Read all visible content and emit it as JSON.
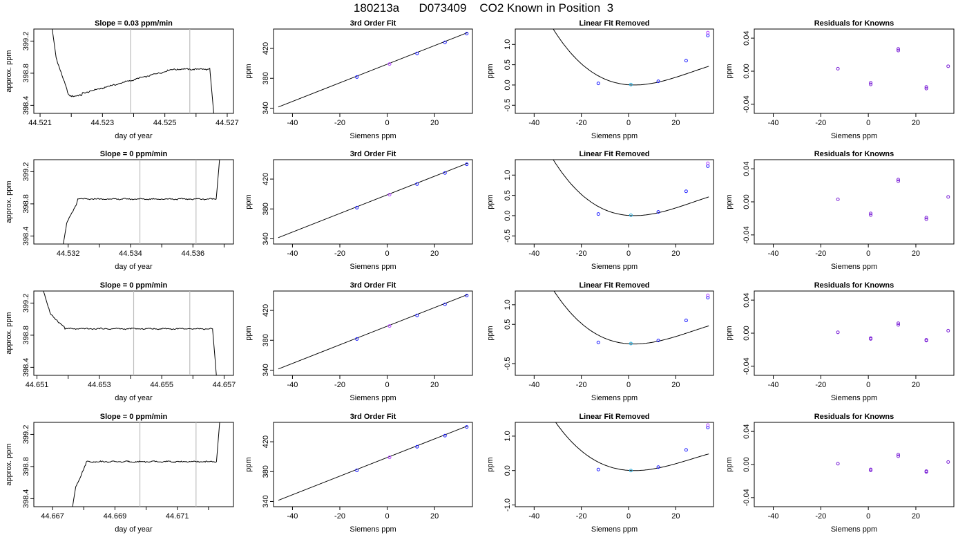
{
  "page_title": "180213a      D073409    CO2 Known in Position  3",
  "colors": {
    "axis": "#000000",
    "line": "#000000",
    "vline": "#bdbdbd",
    "pt_blue": "#1a1aff",
    "pt_purple": "#b040ff",
    "pt_cyan": "#22a8d8",
    "pt_violet": "#7a1fd6"
  },
  "chart_data": [
    {
      "panel": "r1c1",
      "type": "line",
      "title": "Slope =  0.03  ppm/min",
      "xlabel": "day of year",
      "ylabel": "approx. ppm",
      "xlim": [
        44.5208,
        44.5272
      ],
      "ylim": [
        398.3,
        399.35
      ],
      "xticks": [
        44.521,
        44.523,
        44.525,
        44.527
      ],
      "xtick_labels": [
        "44.521",
        "44.523",
        "44.525",
        "44.527"
      ],
      "xminor": [
        44.522,
        44.524,
        44.526
      ],
      "yticks": [
        398.4,
        398.8,
        399.2
      ],
      "ytick_labels": [
        "398.4",
        "398.8",
        "399.2"
      ],
      "vlines": [
        44.5239,
        44.5258
      ],
      "profile": "r1",
      "x0": 44.5213,
      "x1": 44.5266
    },
    {
      "panel": "r1c2",
      "type": "line",
      "title": "3rd Order Fit",
      "xlabel": "Siemens ppm",
      "ylabel": "ppm",
      "xlim": [
        -48,
        36
      ],
      "ylim": [
        333,
        446
      ],
      "xticks": [
        -40,
        -20,
        0,
        20
      ],
      "xtick_labels": [
        "-40",
        "-20",
        "0",
        "20"
      ],
      "yticks": [
        340,
        380,
        420
      ],
      "ytick_labels": [
        "340",
        "380",
        "420"
      ],
      "line": {
        "x": [
          -46,
          34
        ],
        "y": [
          341.5,
          441.3
        ]
      },
      "points": [
        {
          "x": -12.8,
          "y": 381.7,
          "c": "pt_blue"
        },
        {
          "x": 1,
          "y": 399.1,
          "c": "pt_purple"
        },
        {
          "x": 12.6,
          "y": 413.3,
          "c": "pt_blue"
        },
        {
          "x": 24.4,
          "y": 428.2,
          "c": "pt_blue"
        },
        {
          "x": 33.6,
          "y": 439.9,
          "c": "pt_blue"
        }
      ]
    },
    {
      "panel": "r1c3",
      "type": "scatter",
      "title": "Linear Fit Removed",
      "xlabel": "Siemens ppm",
      "ylabel": "ppm",
      "xlim": [
        -48,
        36
      ],
      "ylim": [
        -0.7,
        1.38
      ],
      "xticks": [
        -40,
        -20,
        0,
        20
      ],
      "xtick_labels": [
        "-40",
        "-20",
        "0",
        "20"
      ],
      "yticks": [
        -0.5,
        0,
        0.5,
        1
      ],
      "ytick_labels": [
        "-0.5",
        "0.0",
        "0.5",
        "1.0"
      ],
      "curve": {
        "a": -1.07e-05,
        "b": 0.00088,
        "c": -0.0041,
        "d": 0.005,
        "x0": -46,
        "x1": 34
      },
      "points": [
        {
          "x": -12.8,
          "y": 0.04,
          "c": "pt_blue"
        },
        {
          "x": 1,
          "y": 0.01,
          "c": "pt_cyan"
        },
        {
          "x": 12.6,
          "y": 0.09,
          "c": "pt_blue"
        },
        {
          "x": 24.4,
          "y": 0.6,
          "c": "pt_blue"
        },
        {
          "x": 33.6,
          "y": 1.22,
          "c": "pt_blue"
        },
        {
          "x": 33.6,
          "y": 1.29,
          "c": "pt_purple"
        }
      ]
    },
    {
      "panel": "r1c4",
      "type": "scatter",
      "title": "Residuals for Knowns",
      "xlabel": "Siemens ppm",
      "ylabel": "ppm",
      "xlim": [
        -48,
        36
      ],
      "ylim": [
        -0.051,
        0.051
      ],
      "xticks": [
        -40,
        -20,
        0,
        20
      ],
      "xtick_labels": [
        "-40",
        "-20",
        "0",
        "20"
      ],
      "yticks": [
        -0.04,
        0,
        0.04
      ],
      "ytick_labels": [
        "-0.04",
        "0.00",
        "0.04"
      ],
      "points": [
        {
          "x": -12.8,
          "y": 0.003,
          "c": "pt_violet"
        },
        {
          "x": 1,
          "y": -0.014,
          "c": "pt_violet"
        },
        {
          "x": 1,
          "y": -0.016,
          "c": "pt_violet"
        },
        {
          "x": 12.6,
          "y": 0.025,
          "c": "pt_violet"
        },
        {
          "x": 12.6,
          "y": 0.027,
          "c": "pt_violet"
        },
        {
          "x": 24.4,
          "y": -0.019,
          "c": "pt_violet"
        },
        {
          "x": 24.4,
          "y": -0.021,
          "c": "pt_violet"
        },
        {
          "x": 33.6,
          "y": 0.006,
          "c": "pt_violet"
        }
      ]
    },
    {
      "panel": "r2c1",
      "type": "line",
      "title": "Slope =  0  ppm/min",
      "xlabel": "day of year",
      "ylabel": "approx. ppm",
      "xlim": [
        44.5309,
        44.5373
      ],
      "ylim": [
        398.3,
        399.35
      ],
      "xticks": [
        44.532,
        44.534,
        44.536
      ],
      "xtick_labels": [
        "44.532",
        "44.534",
        "44.536"
      ],
      "xminor": [
        44.533,
        44.535,
        44.537
      ],
      "yticks": [
        398.4,
        398.8,
        399.2
      ],
      "ytick_labels": [
        "398.4",
        "398.8",
        "399.2"
      ],
      "vlines": [
        44.5343,
        44.5361
      ],
      "profile": "r2",
      "x0": 44.5318,
      "x1": 44.5369
    },
    {
      "panel": "r2c2",
      "type": "line",
      "title": "3rd Order Fit",
      "xlabel": "Siemens ppm",
      "ylabel": "ppm",
      "xlim": [
        -48,
        36
      ],
      "ylim": [
        333,
        446
      ],
      "xticks": [
        -40,
        -20,
        0,
        20
      ],
      "xtick_labels": [
        "-40",
        "-20",
        "0",
        "20"
      ],
      "yticks": [
        340,
        380,
        420
      ],
      "ytick_labels": [
        "340",
        "380",
        "420"
      ],
      "line": {
        "x": [
          -46,
          34
        ],
        "y": [
          341.5,
          441.3
        ]
      },
      "points": [
        {
          "x": -12.8,
          "y": 381.7,
          "c": "pt_blue"
        },
        {
          "x": 1,
          "y": 399.1,
          "c": "pt_purple"
        },
        {
          "x": 12.6,
          "y": 413.3,
          "c": "pt_blue"
        },
        {
          "x": 24.4,
          "y": 428.2,
          "c": "pt_blue"
        },
        {
          "x": 33.6,
          "y": 439.9,
          "c": "pt_blue"
        }
      ]
    },
    {
      "panel": "r2c3",
      "type": "scatter",
      "title": "Linear Fit Removed",
      "xlabel": "Siemens ppm",
      "ylabel": "ppm",
      "xlim": [
        -48,
        36
      ],
      "ylim": [
        -0.7,
        1.38
      ],
      "xticks": [
        -40,
        -20,
        0,
        20
      ],
      "xtick_labels": [
        "-40",
        "-20",
        "0",
        "20"
      ],
      "yticks": [
        -0.5,
        0,
        0.5,
        1
      ],
      "ytick_labels": [
        "-0.5",
        "0.0",
        "0.5",
        "1.0"
      ],
      "curve": {
        "a": -1.07e-05,
        "b": 0.00088,
        "c": -0.0041,
        "d": 0.005,
        "x0": -46,
        "x1": 34
      },
      "points": [
        {
          "x": -12.8,
          "y": 0.04,
          "c": "pt_blue"
        },
        {
          "x": 1,
          "y": 0.01,
          "c": "pt_cyan"
        },
        {
          "x": 12.6,
          "y": 0.09,
          "c": "pt_blue"
        },
        {
          "x": 24.4,
          "y": 0.6,
          "c": "pt_blue"
        },
        {
          "x": 33.6,
          "y": 1.22,
          "c": "pt_blue"
        },
        {
          "x": 33.6,
          "y": 1.29,
          "c": "pt_purple"
        }
      ]
    },
    {
      "panel": "r2c4",
      "type": "scatter",
      "title": "Residuals for Knowns",
      "xlabel": "Siemens ppm",
      "ylabel": "ppm",
      "xlim": [
        -48,
        36
      ],
      "ylim": [
        -0.051,
        0.051
      ],
      "xticks": [
        -40,
        -20,
        0,
        20
      ],
      "xtick_labels": [
        "-40",
        "-20",
        "0",
        "20"
      ],
      "yticks": [
        -0.04,
        0,
        0.04
      ],
      "ytick_labels": [
        "-0.04",
        "0.00",
        "0.04"
      ],
      "points": [
        {
          "x": -12.8,
          "y": 0.003,
          "c": "pt_violet"
        },
        {
          "x": 1,
          "y": -0.014,
          "c": "pt_violet"
        },
        {
          "x": 1,
          "y": -0.016,
          "c": "pt_violet"
        },
        {
          "x": 12.6,
          "y": 0.025,
          "c": "pt_violet"
        },
        {
          "x": 12.6,
          "y": 0.027,
          "c": "pt_violet"
        },
        {
          "x": 24.4,
          "y": -0.019,
          "c": "pt_violet"
        },
        {
          "x": 24.4,
          "y": -0.021,
          "c": "pt_violet"
        },
        {
          "x": 33.6,
          "y": 0.006,
          "c": "pt_violet"
        }
      ]
    },
    {
      "panel": "r3c1",
      "type": "line",
      "title": "Slope =  0  ppm/min",
      "xlabel": "day of year",
      "ylabel": "approx. ppm",
      "xlim": [
        44.6509,
        44.6573
      ],
      "ylim": [
        398.3,
        399.35
      ],
      "xticks": [
        44.651,
        44.653,
        44.655,
        44.657
      ],
      "xtick_labels": [
        "44.651",
        "44.653",
        "44.655",
        "44.657"
      ],
      "xminor": [
        44.652,
        44.654,
        44.656
      ],
      "yticks": [
        398.4,
        398.8,
        399.2
      ],
      "ytick_labels": [
        "398.4",
        "398.8",
        "399.2"
      ],
      "vlines": [
        44.6541,
        44.6559
      ],
      "profile": "r3",
      "x0": 44.6511,
      "x1": 44.6568
    },
    {
      "panel": "r3c2",
      "type": "line",
      "title": "3rd Order Fit",
      "xlabel": "Siemens ppm",
      "ylabel": "ppm",
      "xlim": [
        -48,
        36
      ],
      "ylim": [
        333,
        446
      ],
      "xticks": [
        -40,
        -20,
        0,
        20
      ],
      "xtick_labels": [
        "-40",
        "-20",
        "0",
        "20"
      ],
      "yticks": [
        340,
        380,
        420
      ],
      "ytick_labels": [
        "340",
        "380",
        "420"
      ],
      "line": {
        "x": [
          -46,
          34
        ],
        "y": [
          341.5,
          441.3
        ]
      },
      "points": [
        {
          "x": -12.8,
          "y": 381.7,
          "c": "pt_blue"
        },
        {
          "x": 1,
          "y": 399.1,
          "c": "pt_purple"
        },
        {
          "x": 12.6,
          "y": 413.3,
          "c": "pt_blue"
        },
        {
          "x": 24.4,
          "y": 428.2,
          "c": "pt_blue"
        },
        {
          "x": 33.6,
          "y": 439.9,
          "c": "pt_blue"
        }
      ]
    },
    {
      "panel": "r3c3",
      "type": "scatter",
      "title": "Linear Fit Removed",
      "xlabel": "Siemens ppm",
      "ylabel": "ppm",
      "xlim": [
        -48,
        36
      ],
      "ylim": [
        -0.8,
        1.35
      ],
      "xticks": [
        -40,
        -20,
        0,
        20
      ],
      "xtick_labels": [
        "-40",
        "-20",
        "0",
        "20"
      ],
      "yticks": [
        -0.5,
        0.5,
        1
      ],
      "ytick_labels": [
        "-0.5",
        "0.5",
        "1.0"
      ],
      "curve": {
        "a": -1.07e-05,
        "b": 0.00088,
        "c": -0.0041,
        "d": 0.005,
        "x0": -46,
        "x1": 34
      },
      "points": [
        {
          "x": -12.8,
          "y": 0.04,
          "c": "pt_blue"
        },
        {
          "x": 1,
          "y": 0.01,
          "c": "pt_cyan"
        },
        {
          "x": 12.6,
          "y": 0.09,
          "c": "pt_blue"
        },
        {
          "x": 24.4,
          "y": 0.6,
          "c": "pt_blue"
        },
        {
          "x": 33.6,
          "y": 1.18,
          "c": "pt_blue"
        },
        {
          "x": 33.6,
          "y": 1.24,
          "c": "pt_purple"
        }
      ]
    },
    {
      "panel": "r3c4",
      "type": "scatter",
      "title": "Residuals for Knowns",
      "xlabel": "Siemens ppm",
      "ylabel": "ppm",
      "xlim": [
        -48,
        36
      ],
      "ylim": [
        -0.051,
        0.051
      ],
      "xticks": [
        -40,
        -20,
        0,
        20
      ],
      "xtick_labels": [
        "-40",
        "-20",
        "0",
        "20"
      ],
      "yticks": [
        -0.04,
        0,
        0.04
      ],
      "ytick_labels": [
        "-0.04",
        "0.00",
        "0.04"
      ],
      "points": [
        {
          "x": -12.8,
          "y": 0.001,
          "c": "pt_violet"
        },
        {
          "x": 1,
          "y": -0.006,
          "c": "pt_violet"
        },
        {
          "x": 1,
          "y": -0.007,
          "c": "pt_violet"
        },
        {
          "x": 12.6,
          "y": 0.01,
          "c": "pt_violet"
        },
        {
          "x": 12.6,
          "y": 0.012,
          "c": "pt_violet"
        },
        {
          "x": 24.4,
          "y": -0.008,
          "c": "pt_violet"
        },
        {
          "x": 24.4,
          "y": -0.009,
          "c": "pt_violet"
        },
        {
          "x": 33.6,
          "y": 0.003,
          "c": "pt_violet"
        }
      ]
    },
    {
      "panel": "r4c1",
      "type": "line",
      "title": "Slope =  0  ppm/min",
      "xlabel": "day of year",
      "ylabel": "approx. ppm",
      "xlim": [
        44.6664,
        44.6728
      ],
      "ylim": [
        398.3,
        399.35
      ],
      "xticks": [
        44.667,
        44.669,
        44.671
      ],
      "xtick_labels": [
        "44.667",
        "44.669",
        "44.671"
      ],
      "xminor": [
        44.668,
        44.67,
        44.672
      ],
      "yticks": [
        398.4,
        398.8,
        399.2
      ],
      "ytick_labels": [
        "398.4",
        "398.8",
        "399.2"
      ],
      "vlines": [
        44.6698,
        44.6716
      ],
      "profile": "r2",
      "x0": 44.6676,
      "x1": 44.6724
    },
    {
      "panel": "r4c2",
      "type": "line",
      "title": "3rd Order Fit",
      "xlabel": "Siemens ppm",
      "ylabel": "ppm",
      "xlim": [
        -48,
        36
      ],
      "ylim": [
        333,
        446
      ],
      "xticks": [
        -40,
        -20,
        0,
        20
      ],
      "xtick_labels": [
        "-40",
        "-20",
        "0",
        "20"
      ],
      "yticks": [
        340,
        380,
        420
      ],
      "ytick_labels": [
        "340",
        "380",
        "420"
      ],
      "line": {
        "x": [
          -46,
          34
        ],
        "y": [
          341.5,
          441.3
        ]
      },
      "points": [
        {
          "x": -12.8,
          "y": 381.7,
          "c": "pt_blue"
        },
        {
          "x": 1,
          "y": 399.1,
          "c": "pt_purple"
        },
        {
          "x": 12.6,
          "y": 413.3,
          "c": "pt_blue"
        },
        {
          "x": 24.4,
          "y": 428.2,
          "c": "pt_blue"
        },
        {
          "x": 33.6,
          "y": 439.9,
          "c": "pt_blue"
        }
      ]
    },
    {
      "panel": "r4c3",
      "type": "scatter",
      "title": "Linear Fit Removed",
      "xlabel": "Siemens ppm",
      "ylabel": "ppm",
      "xlim": [
        -48,
        36
      ],
      "ylim": [
        -1.05,
        1.4
      ],
      "xticks": [
        -40,
        -20,
        0,
        20
      ],
      "xtick_labels": [
        "-40",
        "-20",
        "0",
        "20"
      ],
      "yticks": [
        -1,
        0,
        1
      ],
      "ytick_labels": [
        "-1.0",
        "0.0",
        "1.0"
      ],
      "curve": {
        "a": -1.18e-05,
        "b": 0.00095,
        "c": -0.0046,
        "d": 0.005,
        "x0": -46,
        "x1": 34
      },
      "points": [
        {
          "x": -12.8,
          "y": 0.03,
          "c": "pt_blue"
        },
        {
          "x": 1,
          "y": 0.0,
          "c": "pt_cyan"
        },
        {
          "x": 12.6,
          "y": 0.1,
          "c": "pt_blue"
        },
        {
          "x": 24.4,
          "y": 0.6,
          "c": "pt_blue"
        },
        {
          "x": 33.6,
          "y": 1.25,
          "c": "pt_blue"
        },
        {
          "x": 33.6,
          "y": 1.32,
          "c": "pt_purple"
        }
      ]
    },
    {
      "panel": "r4c4",
      "type": "scatter",
      "title": "Residuals for Knowns",
      "xlabel": "Siemens ppm",
      "ylabel": "ppm",
      "xlim": [
        -48,
        36
      ],
      "ylim": [
        -0.051,
        0.051
      ],
      "xticks": [
        -40,
        -20,
        0,
        20
      ],
      "xtick_labels": [
        "-40",
        "-20",
        "0",
        "20"
      ],
      "yticks": [
        -0.04,
        0,
        0.04
      ],
      "ytick_labels": [
        "-0.04",
        "0.00",
        "0.04"
      ],
      "points": [
        {
          "x": -12.8,
          "y": 0.001,
          "c": "pt_violet"
        },
        {
          "x": 1,
          "y": -0.006,
          "c": "pt_violet"
        },
        {
          "x": 1,
          "y": -0.007,
          "c": "pt_violet"
        },
        {
          "x": 12.6,
          "y": 0.01,
          "c": "pt_violet"
        },
        {
          "x": 12.6,
          "y": 0.012,
          "c": "pt_violet"
        },
        {
          "x": 24.4,
          "y": -0.008,
          "c": "pt_violet"
        },
        {
          "x": 24.4,
          "y": -0.009,
          "c": "pt_violet"
        },
        {
          "x": 33.6,
          "y": 0.003,
          "c": "pt_violet"
        }
      ]
    }
  ]
}
